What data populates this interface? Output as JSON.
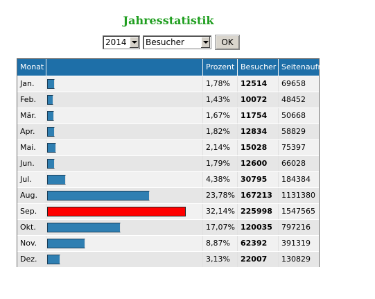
{
  "title": "Jahresstatistik",
  "controls": {
    "year_value": "2014",
    "metric_value": "Besucher",
    "ok_label": "OK"
  },
  "table": {
    "headers": [
      "Monat",
      "",
      "Prozent",
      "Besucher",
      "Seitenaufrufe"
    ],
    "rows": [
      {
        "month": "Jan.",
        "percent": "1,78%",
        "visitors": "12514",
        "pageviews": "69658",
        "share": 0.0178
      },
      {
        "month": "Feb.",
        "percent": "1,43%",
        "visitors": "10072",
        "pageviews": "48452",
        "share": 0.0143
      },
      {
        "month": "Mär.",
        "percent": "1,67%",
        "visitors": "11754",
        "pageviews": "50668",
        "share": 0.0167
      },
      {
        "month": "Apr.",
        "percent": "1,82%",
        "visitors": "12834",
        "pageviews": "58829",
        "share": 0.0182
      },
      {
        "month": "Mai.",
        "percent": "2,14%",
        "visitors": "15028",
        "pageviews": "75397",
        "share": 0.0214
      },
      {
        "month": "Jun.",
        "percent": "1,79%",
        "visitors": "12600",
        "pageviews": "66028",
        "share": 0.0179
      },
      {
        "month": "Jul.",
        "percent": "4,38%",
        "visitors": "30795",
        "pageviews": "184384",
        "share": 0.0438
      },
      {
        "month": "Aug.",
        "percent": "23,78%",
        "visitors": "167213",
        "pageviews": "1131380",
        "share": 0.2378
      },
      {
        "month": "Sep.",
        "percent": "32,14%",
        "visitors": "225998",
        "pageviews": "1547565",
        "share": 0.3214,
        "highlight": true
      },
      {
        "month": "Okt.",
        "percent": "17,07%",
        "visitors": "120035",
        "pageviews": "797216",
        "share": 0.1707
      },
      {
        "month": "Nov.",
        "percent": "8,87%",
        "visitors": "62392",
        "pageviews": "391319",
        "share": 0.0887
      },
      {
        "month": "Dez.",
        "percent": "3,13%",
        "visitors": "22007",
        "pageviews": "130829",
        "share": 0.0313
      }
    ]
  },
  "colors": {
    "header_bg": "#1e6fa8",
    "bar": "#2f7fb2",
    "bar_highlight": "#ff0000",
    "title": "#1f9e1f"
  }
}
